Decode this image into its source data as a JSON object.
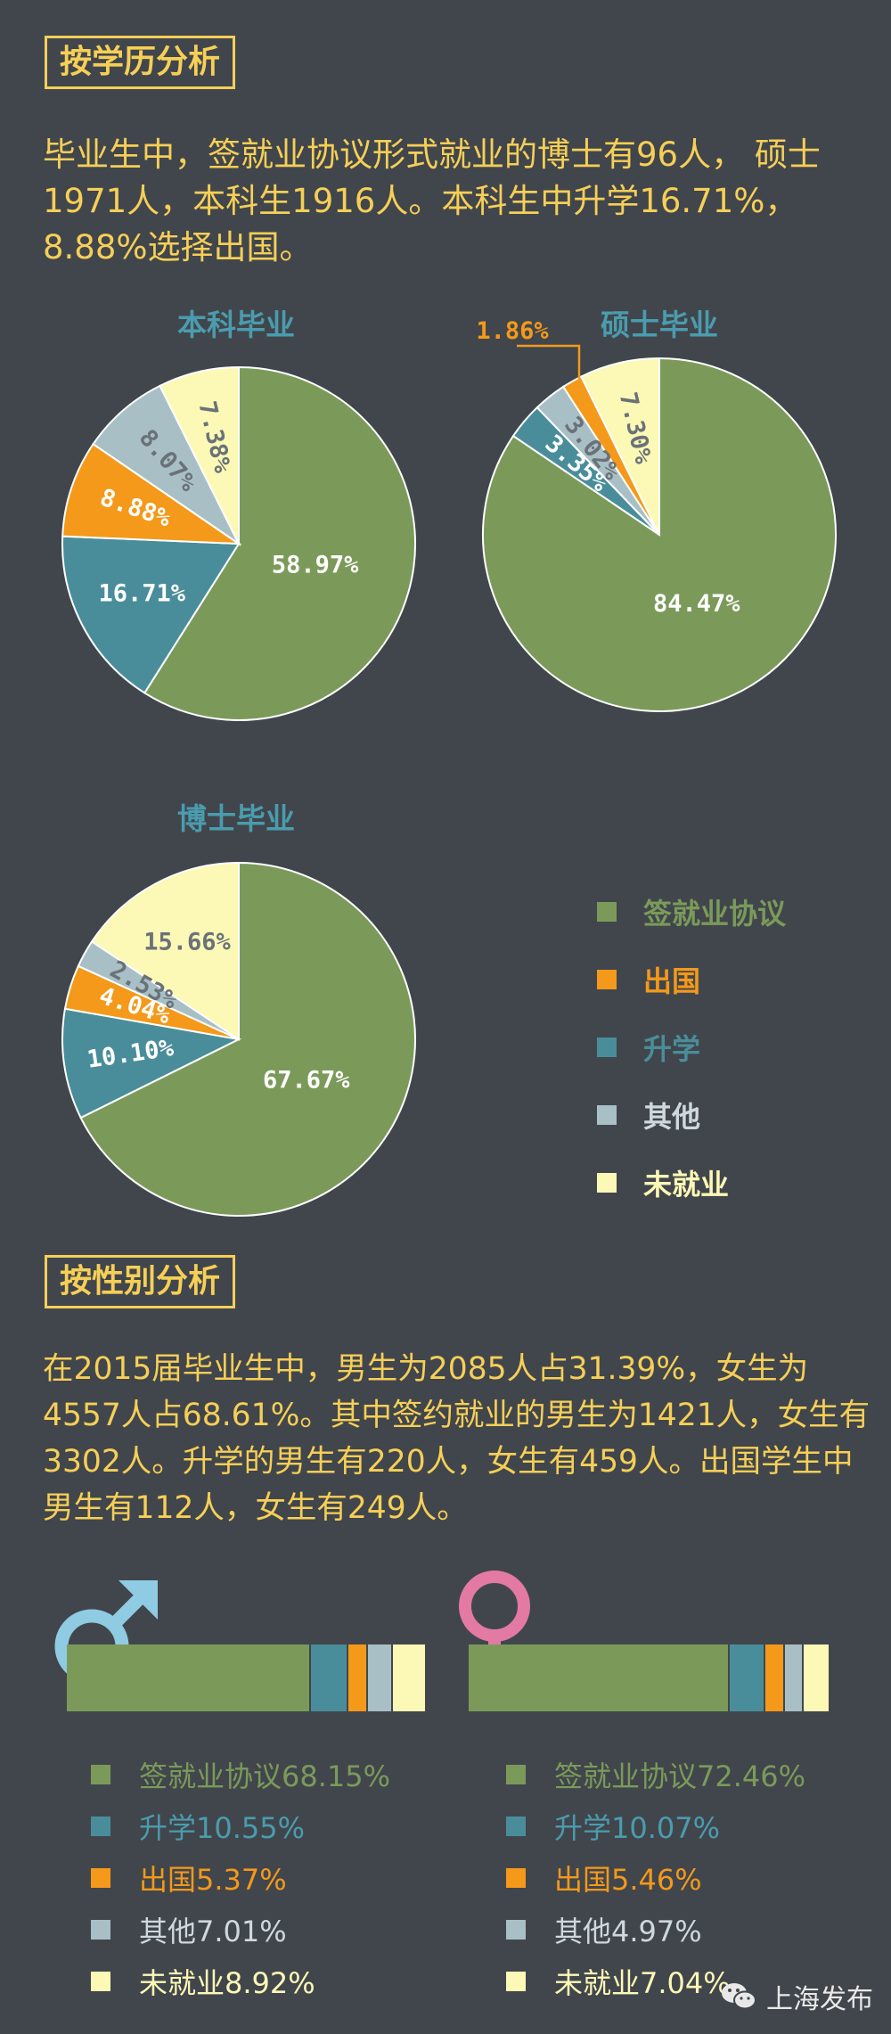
{
  "colors": {
    "background": "#41464c",
    "accent_yellow": "#f6cf57",
    "title_blue": "#4a9cae",
    "signed": "#7b9a5a",
    "abroad": "#f4991a",
    "further_study": "#4a8d9a",
    "other": "#a8bfc6",
    "unemployed": "#fcf8b6",
    "male_symbol": "#8fcbe2",
    "female_symbol": "#e27aa4"
  },
  "section_education": {
    "title": "按学历分析",
    "paragraph": "毕业生中，签就业协议形式就业的博士有96人， 硕士1971人，本科生1916人。本科生中升学16.71%，8.88%选择出国。"
  },
  "section_gender": {
    "title": "按性别分析",
    "paragraph": "在2015届毕业生中，男生为2085人占31.39%，女生为4557人占68.61%。其中签约就业的男生为1421人，女生有3302人。升学的男生有220人，女生有459人。出国学生中男生有112人，女生有249人。"
  },
  "legend": [
    {
      "label": "签就业协议",
      "color": "#7b9a5a"
    },
    {
      "label": "出国",
      "color": "#f4991a"
    },
    {
      "label": "升学",
      "color": "#4a8d9a"
    },
    {
      "label": "其他",
      "color": "#a8bfc6"
    },
    {
      "label": "未就业",
      "color": "#fcf8b6"
    }
  ],
  "chart_data": [
    {
      "type": "pie",
      "title": "本科毕业",
      "categories": [
        "签就业协议",
        "升学",
        "出国",
        "其他",
        "未就业"
      ],
      "values": [
        58.97,
        16.71,
        8.88,
        8.07,
        7.38
      ],
      "labels": [
        "58.97%",
        "16.71%",
        "8.88%",
        "8.07%",
        "7.38%"
      ]
    },
    {
      "type": "pie",
      "title": "硕士毕业",
      "categories": [
        "签就业协议",
        "升学",
        "其他",
        "出国",
        "未就业"
      ],
      "values": [
        84.47,
        3.35,
        3.02,
        1.86,
        7.3
      ],
      "labels": [
        "84.47%",
        "3.35%",
        "3.02%",
        "1.86%",
        "7.30%"
      ]
    },
    {
      "type": "pie",
      "title": "博士毕业",
      "categories": [
        "签就业协议",
        "升学",
        "出国",
        "其他",
        "未就业"
      ],
      "values": [
        67.67,
        10.1,
        4.04,
        2.53,
        15.66
      ],
      "labels": [
        "67.67%",
        "10.10%",
        "4.04%",
        "2.53%",
        "15.66%"
      ]
    },
    {
      "type": "bar",
      "subtype": "stacked-100",
      "series": [
        {
          "name": "male",
          "categories": [
            "签就业协议",
            "升学",
            "出国",
            "其他",
            "未就业"
          ],
          "values": [
            68.15,
            10.55,
            5.37,
            7.01,
            8.92
          ],
          "labels": [
            "签就业协议68.15%",
            "升学10.55%",
            "出国5.37%",
            "其他7.01%",
            "未就业8.92%"
          ]
        },
        {
          "name": "female",
          "categories": [
            "签就业协议",
            "升学",
            "出国",
            "其他",
            "未就业"
          ],
          "values": [
            72.46,
            10.07,
            5.46,
            4.97,
            7.04
          ],
          "labels": [
            "签就业协议72.46%",
            "升学10.07%",
            "出国5.46%",
            "其他4.97%",
            "未就业7.04%"
          ]
        }
      ]
    }
  ],
  "watermark": {
    "text": "上海发布",
    "icon": "wechat-icon"
  }
}
